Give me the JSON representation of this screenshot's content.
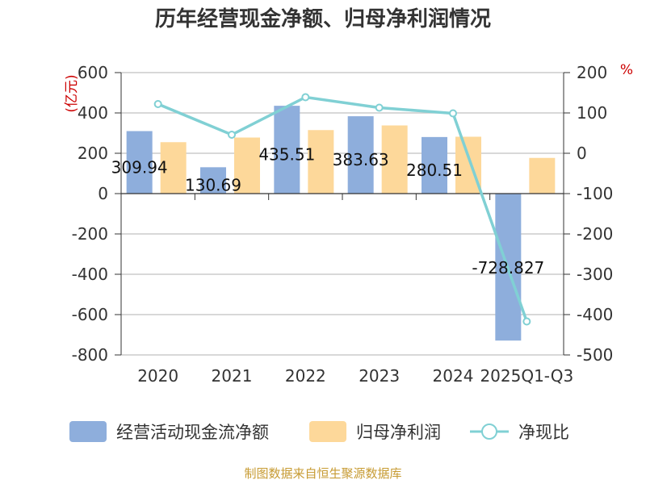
{
  "chart_data": {
    "type": "bar",
    "title": "历年经营现金净额、归母净利润情况",
    "categories": [
      "2020",
      "2021",
      "2022",
      "2023",
      "2024",
      "2025Q1-Q3"
    ],
    "series": [
      {
        "name": "经营活动现金流净额",
        "type": "bar",
        "axis": "left",
        "color": "#8eaedc",
        "values": [
          309.94,
          130.69,
          435.51,
          383.63,
          280.51,
          -728.827
        ]
      },
      {
        "name": "归母净利润",
        "type": "bar",
        "axis": "left",
        "color": "#fdd89a",
        "values": [
          255,
          278,
          315,
          338,
          282,
          177
        ]
      },
      {
        "name": "净现比",
        "type": "line",
        "axis": "right",
        "color": "#80d0d4",
        "values": [
          122,
          46,
          139,
          113,
          99,
          -417
        ]
      }
    ],
    "data_labels": [
      "309.94",
      "130.69",
      "435.51",
      "383.63",
      "280.51",
      "-728.827"
    ],
    "y_left": {
      "label": "(亿元)",
      "ylim": [
        -800,
        600
      ],
      "ticks": [
        "600",
        "400",
        "200",
        "0",
        "-200",
        "-400",
        "-600",
        "-800"
      ]
    },
    "y_right": {
      "label": "%",
      "ylim": [
        -500,
        200
      ],
      "ticks": [
        "200",
        "100",
        "0",
        "-100",
        "-200",
        "-300",
        "-400",
        "-500"
      ]
    },
    "grid": true,
    "legend_position": "bottom",
    "source": "制图数据来自恒生聚源数据库"
  }
}
